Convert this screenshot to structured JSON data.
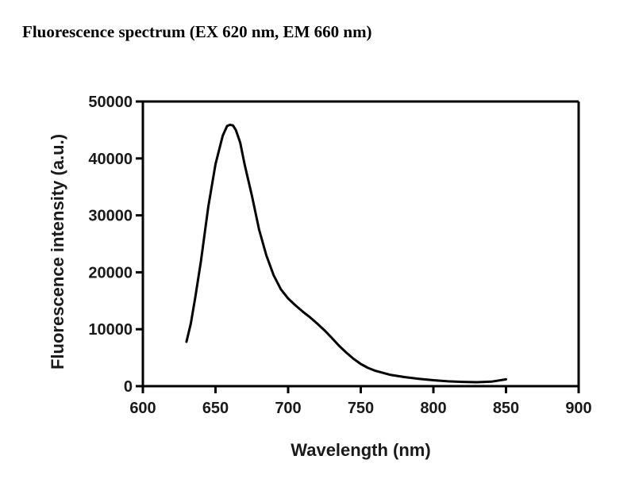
{
  "title": "Fluorescence spectrum (EX 620 nm, EM 660 nm)",
  "chart_data": {
    "type": "line",
    "title": "Fluorescence spectrum (EX 620 nm, EM 660 nm)",
    "xlabel": "Wavelength (nm)",
    "ylabel": "Fluorescence intensity (a.u.)",
    "xlim": [
      600,
      900
    ],
    "ylim": [
      0,
      50000
    ],
    "xticks": [
      600,
      650,
      700,
      750,
      800,
      850,
      900
    ],
    "yticks": [
      0,
      10000,
      20000,
      30000,
      40000,
      50000
    ],
    "ytick_labels": [
      "0",
      "10000",
      "20000",
      "30000",
      "40000",
      "50000"
    ],
    "grid": false,
    "legend": false,
    "line_color": "#000000",
    "series": [
      {
        "x": [
          630,
          633,
          636,
          640,
          645,
          650,
          655,
          658,
          660,
          662,
          664,
          667,
          670,
          675,
          680,
          685,
          690,
          695,
          700,
          705,
          710,
          715,
          720,
          725,
          730,
          735,
          740,
          745,
          750,
          755,
          760,
          770,
          780,
          790,
          800,
          810,
          820,
          830,
          840,
          850
        ],
        "y": [
          7800,
          11000,
          15500,
          22000,
          31500,
          39000,
          44000,
          45700,
          45900,
          45800,
          45000,
          42800,
          39000,
          33500,
          27500,
          23000,
          19500,
          17000,
          15400,
          14200,
          13100,
          12100,
          11000,
          9800,
          8500,
          7100,
          5900,
          4800,
          3900,
          3200,
          2700,
          2000,
          1600,
          1300,
          1050,
          850,
          750,
          700,
          800,
          1200
        ]
      }
    ]
  }
}
